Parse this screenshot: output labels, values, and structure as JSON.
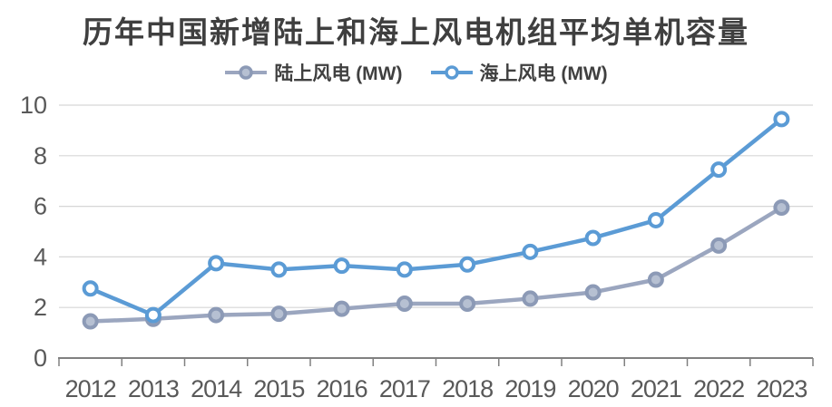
{
  "title": "历年中国新增陆上和海上风电机组平均单机容量",
  "chart_data": {
    "type": "line",
    "title": "历年中国新增陆上和海上风电机组平均单机容量",
    "categories": [
      "2012",
      "2013",
      "2014",
      "2015",
      "2016",
      "2017",
      "2018",
      "2019",
      "2020",
      "2021",
      "2022",
      "2023"
    ],
    "series": [
      {
        "name": "陆上风电 (MW)",
        "values": [
          1.45,
          1.55,
          1.7,
          1.75,
          1.95,
          2.15,
          2.15,
          2.35,
          2.6,
          3.1,
          4.45,
          5.95
        ],
        "line_color": "#9BA6BF",
        "marker_stroke": "#8C9AB6",
        "marker_fill": "#B6C0D2"
      },
      {
        "name": "海上风电 (MW)",
        "values": [
          2.75,
          1.7,
          3.75,
          3.5,
          3.65,
          3.5,
          3.7,
          4.2,
          4.75,
          5.45,
          7.45,
          9.45
        ],
        "line_color": "#5B9BD5",
        "marker_stroke": "#5B9BD5",
        "marker_fill": "#FFFFFF"
      }
    ],
    "xlabel": "",
    "ylabel": "",
    "ylim": [
      0,
      10
    ],
    "yticks": [
      0,
      2,
      4,
      6,
      8,
      10
    ],
    "grid": true,
    "legend_position": "top",
    "colors": {
      "background": "#FFFFFF",
      "title": "#3F3F3F",
      "legend_text": "#404040",
      "tick_label": "#595959",
      "axis": "#808080",
      "gridline": "#D6D6D6"
    }
  }
}
